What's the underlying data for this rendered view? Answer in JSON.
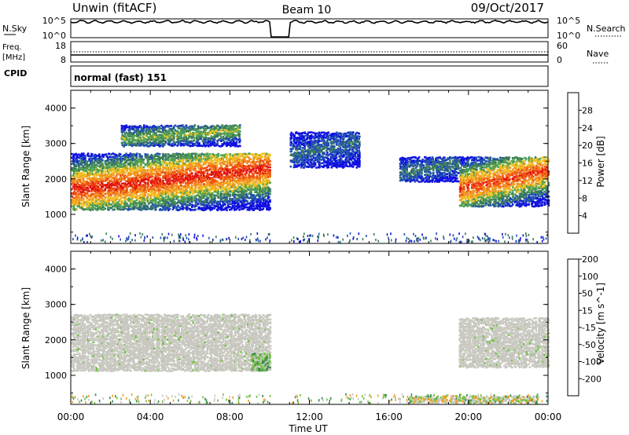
{
  "header": {
    "title": "Unwin (fitACF)",
    "beam": "Beam 10",
    "date": "09/Oct/2017"
  },
  "sky_panel": {
    "left_label": "N.Sky",
    "left_ticks": [
      "10^5",
      "10^0"
    ],
    "right_ticks": [
      "10^5",
      "10^0"
    ],
    "right_label": "N.Search"
  },
  "freq_panel": {
    "left_label_1": "Freq.",
    "left_label_2": "[MHz]",
    "left_ticks": [
      "18",
      "8"
    ],
    "right_ticks": [
      "60",
      "0"
    ],
    "right_label": "Nave",
    "cpid_label": "CPID"
  },
  "cpid_panel": {
    "text": "normal (fast) 151"
  },
  "colors": {
    "power_scale": [
      "#1010e0",
      "#2050b0",
      "#3a7a5a",
      "#50a050",
      "#f0c020",
      "#f09020",
      "#f05010",
      "#e01010"
    ],
    "velocity_scale": [
      "#e01010",
      "#f05010",
      "#f0a020",
      "#c8c8c0",
      "#70c040",
      "#3a8a50",
      "#2050b0",
      "#1020d0"
    ],
    "ground_scatter": "#c8c8c0"
  },
  "chart_data": [
    {
      "type": "heatmap",
      "name": "power",
      "ylabel": "Slant Range [km]",
      "xlabel": "Time UT",
      "x_range": [
        "00:00",
        "24:00"
      ],
      "xticks": [
        "00:00",
        "04:00",
        "08:00",
        "12:00",
        "16:00",
        "20:00",
        "00:00"
      ],
      "ylim": [
        180,
        4500
      ],
      "yticks": [
        1000,
        2000,
        3000,
        4000
      ],
      "colorbar": {
        "label": "Power [dB]",
        "range": [
          0,
          32
        ],
        "ticks": [
          4,
          8,
          12,
          16,
          20,
          24,
          28
        ]
      },
      "echo_bands": [
        {
          "t_start": 0.0,
          "t_end": 10.0,
          "range_low_km": 1100,
          "range_high_km": 2700,
          "peak_power_db": 30
        },
        {
          "t_start": 2.5,
          "t_end": 8.5,
          "range_low_km": 2900,
          "range_high_km": 3500,
          "peak_power_db": 16
        },
        {
          "t_start": 11.0,
          "t_end": 14.5,
          "range_low_km": 2300,
          "range_high_km": 3300,
          "peak_power_db": 8
        },
        {
          "t_start": 16.5,
          "t_end": 19.5,
          "range_low_km": 1900,
          "range_high_km": 2600,
          "peak_power_db": 10
        },
        {
          "t_start": 19.5,
          "t_end": 24.0,
          "range_low_km": 1200,
          "range_high_km": 2600,
          "peak_power_db": 28
        }
      ]
    },
    {
      "type": "heatmap",
      "name": "velocity",
      "ylabel": "Slant Range [km]",
      "xlabel": "Time UT",
      "x_range": [
        "00:00",
        "24:00"
      ],
      "xticks": [
        "00:00",
        "04:00",
        "08:00",
        "12:00",
        "16:00",
        "20:00",
        "00:00"
      ],
      "ylim": [
        180,
        4500
      ],
      "yticks": [
        1000,
        2000,
        3000,
        4000
      ],
      "colorbar": {
        "label": "Velocity [m s^-1]",
        "range": [
          -250,
          250
        ],
        "ticks": [
          -200,
          -100,
          -50,
          -15,
          15,
          50,
          100,
          200
        ]
      },
      "echo_bands": [
        {
          "t_start": 0.0,
          "t_end": 10.0,
          "range_low_km": 1100,
          "range_high_km": 2700,
          "mean_velocity": 0,
          "ground_scatter": true
        },
        {
          "t_start": 9.0,
          "t_end": 10.0,
          "range_low_km": 1100,
          "range_high_km": 1600,
          "mean_velocity": 30,
          "ground_scatter": false
        },
        {
          "t_start": 17.0,
          "t_end": 23.5,
          "range_low_km": 200,
          "range_high_km": 400,
          "mean_velocity": -30,
          "ground_scatter": false
        },
        {
          "t_start": 19.5,
          "t_end": 24.0,
          "range_low_km": 1200,
          "range_high_km": 2600,
          "mean_velocity": 0,
          "ground_scatter": true
        }
      ]
    }
  ]
}
